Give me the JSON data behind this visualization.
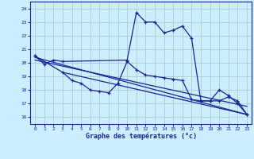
{
  "title": "Graphe des températures (°c)",
  "bg_color": "#cceeff",
  "grid_color": "#aacccc",
  "line_color": "#1a2299",
  "xlim": [
    -0.5,
    23.5
  ],
  "ylim": [
    15.5,
    24.5
  ],
  "xticks": [
    0,
    1,
    2,
    3,
    4,
    5,
    6,
    7,
    8,
    9,
    10,
    11,
    12,
    13,
    14,
    15,
    16,
    17,
    18,
    19,
    20,
    21,
    22,
    23
  ],
  "yticks": [
    16,
    17,
    18,
    19,
    20,
    21,
    22,
    23,
    24
  ],
  "series1_x": [
    0,
    1,
    2,
    3,
    10,
    11,
    12,
    13,
    14,
    15,
    16,
    17,
    18,
    19,
    20,
    21,
    22,
    23
  ],
  "series1_y": [
    20.5,
    19.9,
    20.2,
    20.1,
    20.2,
    23.7,
    23.0,
    23.0,
    22.2,
    22.4,
    22.7,
    21.8,
    17.2,
    17.2,
    18.0,
    17.6,
    17.0,
    16.2
  ],
  "series2_x": [
    0,
    3,
    4,
    5,
    6,
    7,
    8,
    9,
    10,
    11,
    12,
    13,
    14,
    15,
    16,
    17,
    18,
    19,
    20,
    21,
    22,
    23
  ],
  "series2_y": [
    20.5,
    19.3,
    18.7,
    18.5,
    18.0,
    17.9,
    17.8,
    18.5,
    20.1,
    19.5,
    19.1,
    19.0,
    18.9,
    18.8,
    18.7,
    17.3,
    17.2,
    17.2,
    17.2,
    17.5,
    17.2,
    16.2
  ],
  "trend1_x": [
    0,
    23
  ],
  "trend1_y": [
    20.4,
    16.2
  ],
  "trend2_x": [
    3,
    23
  ],
  "trend2_y": [
    19.3,
    16.2
  ],
  "trend3_x": [
    0,
    23
  ],
  "trend3_y": [
    20.2,
    16.8
  ]
}
